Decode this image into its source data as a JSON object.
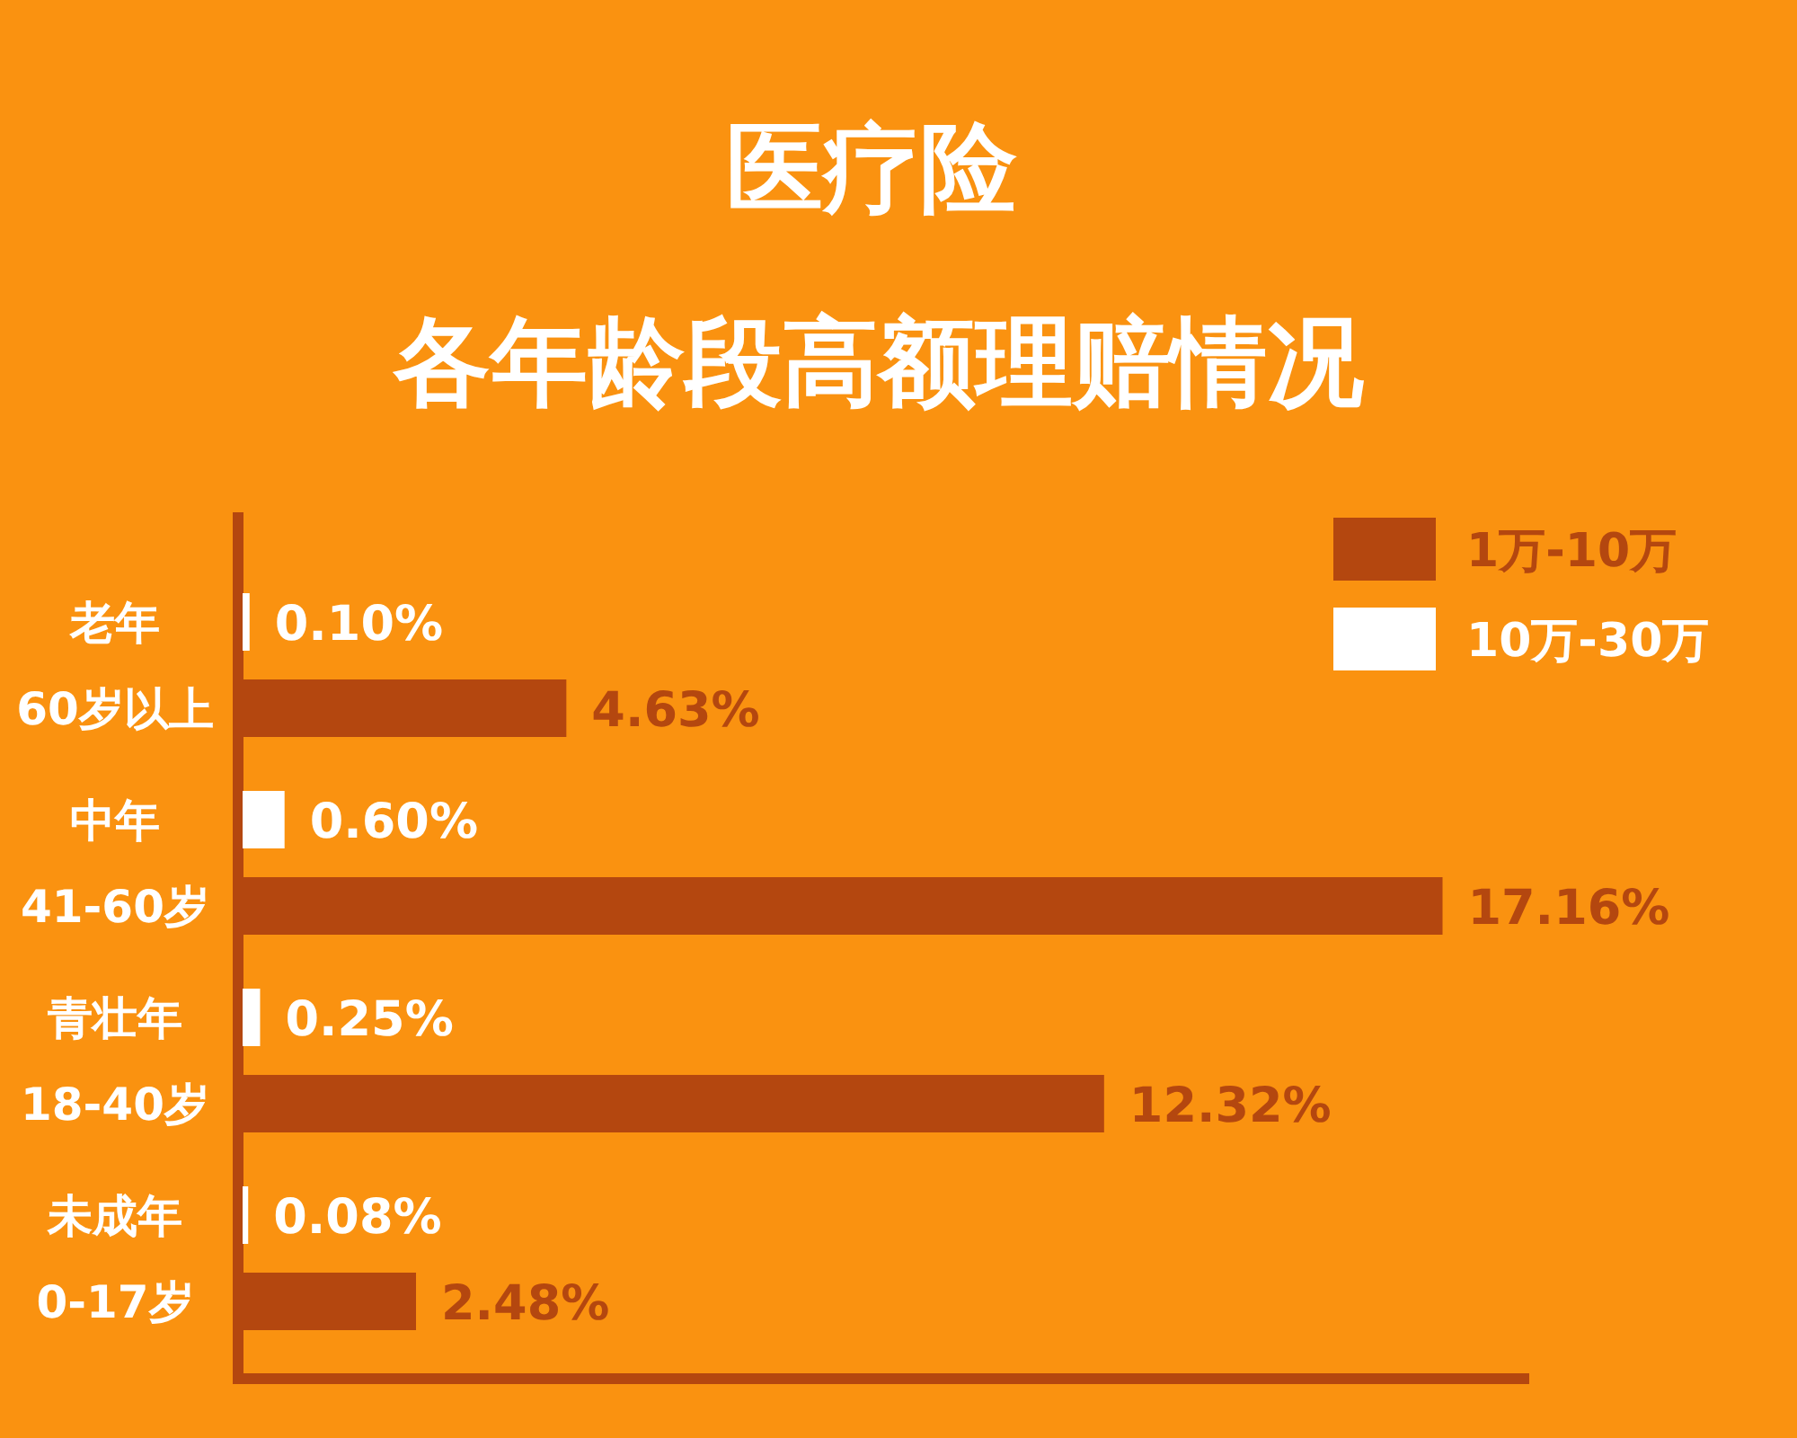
{
  "chart_data": {
    "type": "bar",
    "orientation": "horizontal",
    "title": "医疗险",
    "subtitle": "各年龄段高额理赔情况",
    "categories": [
      "老年\n60岁以上",
      "中年\n41-60岁",
      "青壮年\n18-40岁",
      "未成年\n0-17岁"
    ],
    "series": [
      {
        "name": "1万-10万",
        "color": "#b4470f",
        "values": [
          4.63,
          17.16,
          12.32,
          2.48
        ],
        "value_labels": [
          "4.63%",
          "17.16%",
          "12.32%",
          "2.48%"
        ]
      },
      {
        "name": "10万-30万",
        "color": "#ffffff",
        "values": [
          0.1,
          0.6,
          0.25,
          0.08
        ],
        "value_labels": [
          "0.10%",
          "0.60%",
          "0.25%",
          "0.08%"
        ]
      }
    ],
    "xlim": [
      0,
      18.4
    ],
    "tick_labels": "y",
    "legend": "top right"
  }
}
